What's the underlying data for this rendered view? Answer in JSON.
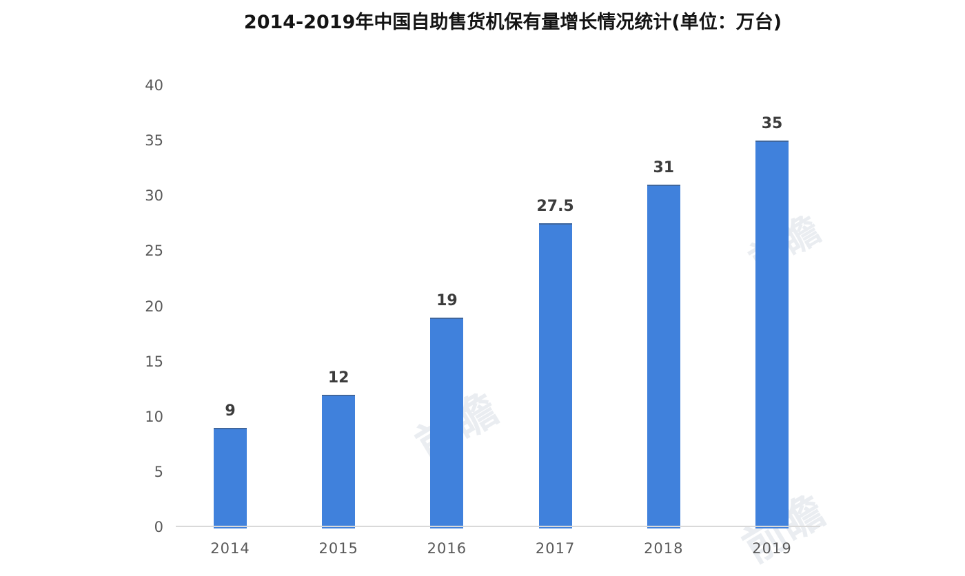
{
  "title": "2014-2019年中国自助售货机保有量增长情况统计(单位：万台)",
  "chart_data": {
    "type": "bar",
    "title": "2014-2019年中国自助售货机保有量增长情况统计(单位：万台)",
    "subtitle": "",
    "categories": [
      "2014",
      "2015",
      "2016",
      "2017",
      "2018",
      "2019"
    ],
    "values": [
      9,
      12,
      19,
      27.5,
      31,
      35
    ],
    "value_labels": [
      "9",
      "12",
      "19",
      "27.5",
      "31",
      "35"
    ],
    "series_name": "中国自助售货机保有量",
    "unit": "万台",
    "xlabel": "",
    "ylabel": "",
    "ylim": [
      0,
      40
    ],
    "yticks": [
      0,
      5,
      10,
      15,
      20,
      25,
      30,
      35,
      40
    ],
    "grid": false,
    "legend_position": "none",
    "colors": {
      "bar": "#4081dc",
      "bar_top_edge": "rgba(62,68,80,0.45)",
      "axis_line": "#d9d9d9",
      "tick_label": "#595959",
      "value_label": "#3c3c3c",
      "title": "#141414"
    }
  },
  "watermarks": [
    {
      "text": "前瞻"
    },
    {
      "text": "前瞻"
    },
    {
      "text": "前瞻"
    }
  ]
}
